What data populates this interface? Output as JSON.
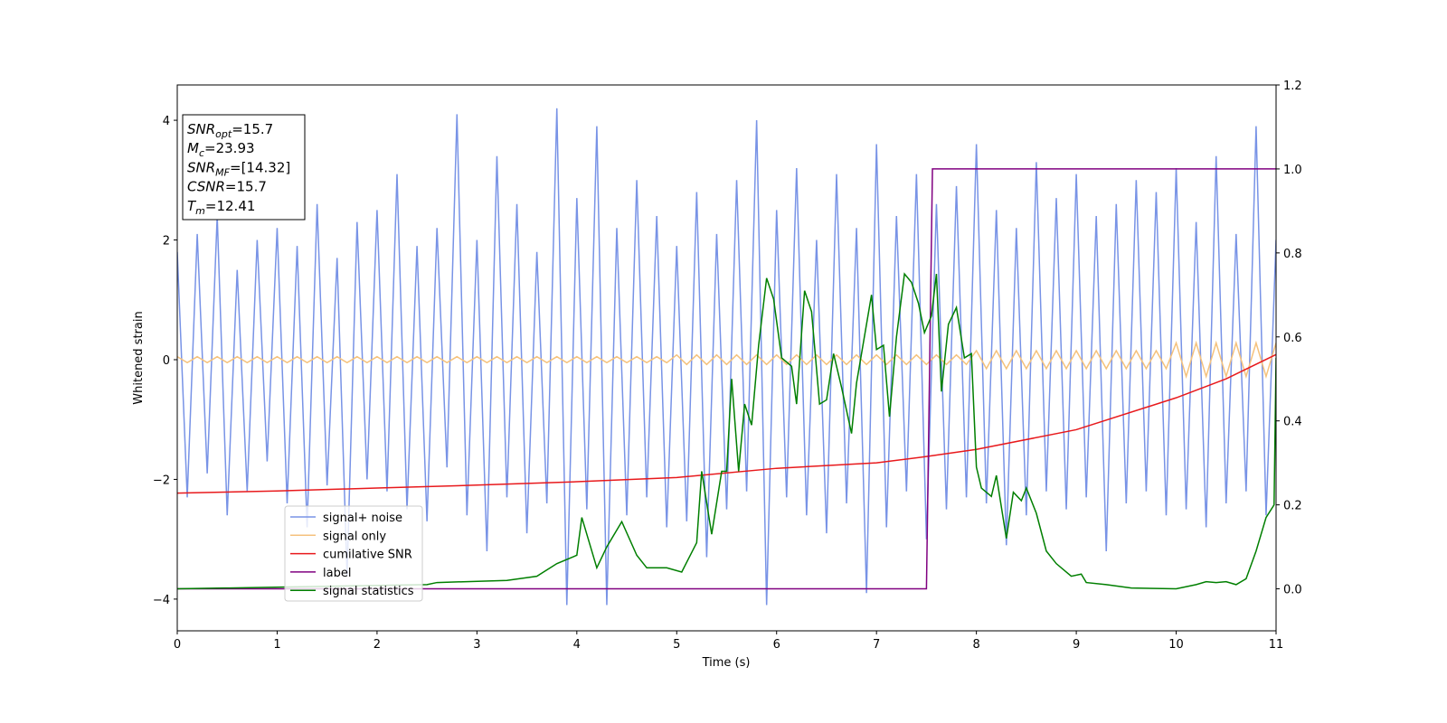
{
  "chart_data": {
    "type": "line",
    "xlabel": "Time (s)",
    "ylabel": "Whitened strain",
    "xlim": [
      0,
      11
    ],
    "xticks": [
      0,
      1,
      2,
      3,
      4,
      5,
      6,
      7,
      8,
      9,
      10,
      11
    ],
    "ylim": [
      -4.53,
      4.59
    ],
    "yticks": [
      -4,
      -2,
      0,
      2,
      4
    ],
    "y2lim": [
      -0.1,
      1.2
    ],
    "y2ticks": [
      {
        "value": 0,
        "label": "0.0"
      },
      0.2,
      0.4,
      0.6,
      0.8,
      {
        "value": 1,
        "label": "1.0"
      },
      1.2
    ],
    "x": [
      0,
      0.1,
      0.2,
      0.3,
      0.4,
      0.5,
      0.6,
      0.7,
      0.8,
      0.9,
      1,
      1.1,
      1.2,
      1.3,
      1.4,
      1.5,
      1.6,
      1.7,
      1.8,
      1.9,
      2,
      2.1,
      2.2,
      2.3,
      2.4,
      2.5,
      2.6,
      2.7,
      2.8,
      2.9,
      3,
      3.1,
      3.2,
      3.3,
      3.4,
      3.5,
      3.6,
      3.7,
      3.8,
      3.9,
      4,
      4.1,
      4.2,
      4.3,
      4.4,
      4.5,
      4.6,
      4.7,
      4.8,
      4.9,
      5,
      5.1,
      5.2,
      5.3,
      5.4,
      5.5,
      5.6,
      5.7,
      5.8,
      5.9,
      6,
      6.1,
      6.2,
      6.3,
      6.4,
      6.5,
      6.6,
      6.7,
      6.8,
      6.9,
      7,
      7.1,
      7.2,
      7.3,
      7.4,
      7.5,
      7.6,
      7.7,
      7.8,
      7.9,
      8,
      8.1,
      8.2,
      8.3,
      8.4,
      8.5,
      8.6,
      8.7,
      8.8,
      8.9,
      9,
      9.1,
      9.2,
      9.3,
      9.4,
      9.5,
      9.6,
      9.7,
      9.8,
      9.9,
      10,
      10.1,
      10.2,
      10.3,
      10.4,
      10.5,
      10.6,
      10.7,
      10.8,
      10.9,
      11
    ],
    "series": [
      {
        "name": "signal+ noise",
        "color": "#7893e6",
        "values": [
          1.8,
          -2.3,
          2.1,
          -1.9,
          2.4,
          -2.6,
          1.5,
          -2.2,
          2.0,
          -1.7,
          2.2,
          -2.4,
          1.9,
          -2.8,
          2.6,
          -2.1,
          1.7,
          -3.6,
          2.3,
          -2.0,
          2.5,
          -2.2,
          3.1,
          -2.5,
          1.9,
          -2.7,
          2.2,
          -1.8,
          4.1,
          -2.6,
          2.0,
          -3.2,
          3.4,
          -2.3,
          2.6,
          -2.9,
          1.8,
          -2.4,
          4.2,
          -4.1,
          2.7,
          -2.5,
          3.9,
          -4.1,
          2.2,
          -2.6,
          3.0,
          -2.3,
          2.4,
          -2.8,
          1.9,
          -2.7,
          2.8,
          -3.3,
          2.1,
          -2.5,
          3.0,
          -2.2,
          4.0,
          -4.1,
          2.5,
          -2.3,
          3.2,
          -2.6,
          2.0,
          -2.9,
          3.1,
          -2.4,
          2.2,
          -3.9,
          3.6,
          -2.8,
          2.4,
          -2.2,
          3.1,
          -3.0,
          2.6,
          -2.5,
          2.9,
          -2.3,
          3.6,
          -2.4,
          2.5,
          -3.1,
          2.2,
          -2.6,
          3.3,
          -2.2,
          2.7,
          -2.5,
          3.1,
          -2.3,
          2.4,
          -3.2,
          2.6,
          -2.4,
          3.0,
          -2.2,
          2.8,
          -2.6,
          3.2,
          -2.5,
          2.3,
          -2.8,
          3.4,
          -2.4,
          2.1,
          -2.2,
          3.9,
          -2.6,
          2.0
        ]
      },
      {
        "name": "signal only",
        "color": "#f5c27d",
        "values": [
          0.05,
          -0.05,
          0.05,
          -0.05,
          0.05,
          -0.05,
          0.05,
          -0.05,
          0.05,
          -0.05,
          0.05,
          -0.05,
          0.05,
          -0.05,
          0.05,
          -0.05,
          0.05,
          -0.05,
          0.05,
          -0.05,
          0.05,
          -0.05,
          0.05,
          -0.05,
          0.05,
          -0.05,
          0.05,
          -0.05,
          0.05,
          -0.05,
          0.05,
          -0.05,
          0.05,
          -0.05,
          0.05,
          -0.05,
          0.05,
          -0.05,
          0.05,
          -0.05,
          0.05,
          -0.05,
          0.05,
          -0.05,
          0.05,
          -0.05,
          0.05,
          -0.05,
          0.05,
          -0.05,
          0.08,
          -0.08,
          0.08,
          -0.08,
          0.08,
          -0.08,
          0.08,
          -0.08,
          0.08,
          -0.08,
          0.08,
          -0.08,
          0.08,
          -0.08,
          0.08,
          -0.08,
          0.08,
          -0.08,
          0.08,
          -0.08,
          0.08,
          -0.08,
          0.08,
          -0.08,
          0.08,
          -0.08,
          0.08,
          -0.08,
          0.08,
          -0.08,
          0.15,
          -0.15,
          0.15,
          -0.15,
          0.15,
          -0.15,
          0.15,
          -0.15,
          0.15,
          -0.15,
          0.15,
          -0.15,
          0.15,
          -0.15,
          0.15,
          -0.15,
          0.15,
          -0.15,
          0.15,
          -0.15,
          0.28,
          -0.28,
          0.28,
          -0.28,
          0.28,
          -0.28,
          0.28,
          -0.28,
          0.28,
          -0.28,
          0.28
        ]
      },
      {
        "name": "cumilative SNR",
        "color": "#e8191c",
        "axis": "y2",
        "x": [
          0,
          1,
          2,
          3,
          4,
          5,
          6,
          7,
          7.5,
          8,
          9,
          10,
          10.5,
          11
        ],
        "values": [
          0.228,
          0.233,
          0.24,
          0.247,
          0.255,
          0.265,
          0.287,
          0.3,
          0.315,
          0.332,
          0.379,
          0.455,
          0.5,
          0.558
        ]
      },
      {
        "name": "label",
        "color": "#800080",
        "axis": "y2",
        "x": [
          0,
          7.5,
          7.56,
          11
        ],
        "values": [
          0,
          0,
          1,
          1
        ]
      },
      {
        "name": "signal statistics",
        "color": "#007f00",
        "axis": "y2",
        "x": [
          0,
          2.5,
          2.6,
          3.3,
          3.6,
          3.8,
          4.0,
          4.05,
          4.2,
          4.3,
          4.45,
          4.6,
          4.7,
          4.9,
          5.05,
          5.2,
          5.25,
          5.35,
          5.45,
          5.5,
          5.55,
          5.62,
          5.68,
          5.75,
          5.82,
          5.9,
          5.97,
          6.05,
          6.15,
          6.2,
          6.28,
          6.35,
          6.43,
          6.5,
          6.57,
          6.65,
          6.75,
          6.8,
          6.95,
          7.0,
          7.07,
          7.13,
          7.2,
          7.28,
          7.35,
          7.42,
          7.48,
          7.55,
          7.6,
          7.65,
          7.72,
          7.8,
          7.88,
          7.95,
          8.0,
          8.05,
          8.15,
          8.2,
          8.3,
          8.37,
          8.45,
          8.5,
          8.6,
          8.7,
          8.8,
          8.95,
          9.05,
          9.1,
          9.3,
          9.55,
          10.0,
          10.2,
          10.3,
          10.4,
          10.5,
          10.6,
          10.7,
          10.8,
          10.9,
          10.98,
          11
        ],
        "values": [
          0,
          0.01,
          0.015,
          0.02,
          0.03,
          0.06,
          0.08,
          0.17,
          0.05,
          0.1,
          0.16,
          0.08,
          0.05,
          0.05,
          0.04,
          0.11,
          0.28,
          0.13,
          0.28,
          0.28,
          0.5,
          0.28,
          0.44,
          0.39,
          0.58,
          0.74,
          0.69,
          0.55,
          0.53,
          0.44,
          0.71,
          0.66,
          0.44,
          0.45,
          0.56,
          0.48,
          0.37,
          0.49,
          0.7,
          0.57,
          0.58,
          0.41,
          0.6,
          0.75,
          0.73,
          0.68,
          0.61,
          0.65,
          0.75,
          0.47,
          0.63,
          0.67,
          0.55,
          0.56,
          0.29,
          0.24,
          0.22,
          0.27,
          0.12,
          0.23,
          0.21,
          0.24,
          0.18,
          0.09,
          0.06,
          0.03,
          0.035,
          0.015,
          0.01,
          0.002,
          0,
          0.01,
          0.017,
          0.015,
          0.017,
          0.01,
          0.024,
          0.09,
          0.17,
          0.2,
          0.55
        ]
      }
    ],
    "annotation": [
      {
        "name": "SNR",
        "sub": "opt",
        "rest": "=15.7"
      },
      {
        "name": "M",
        "sub": "c",
        "rest": "=23.93"
      },
      {
        "name": "SNR",
        "sub": "MF",
        "rest": "=[14.32]"
      },
      {
        "name": "CSNR",
        "rest": "=15.7"
      },
      {
        "name": "T",
        "sub": "m",
        "rest": "=12.41"
      }
    ]
  }
}
